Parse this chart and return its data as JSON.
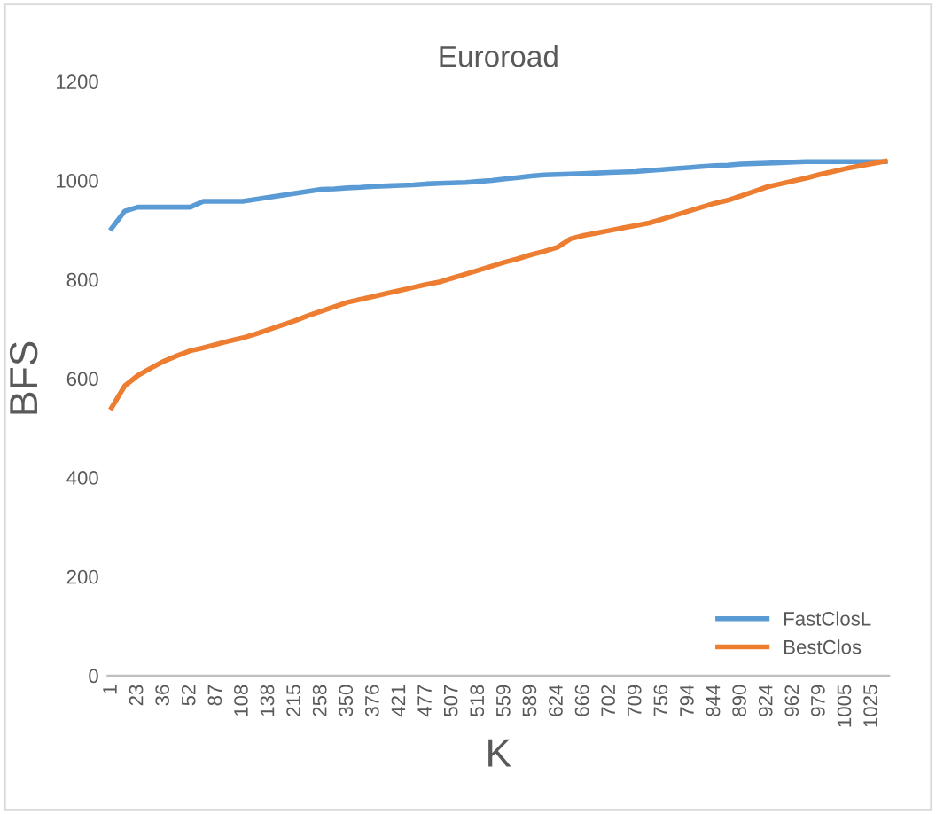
{
  "chart_data": {
    "type": "line",
    "title": "Euroroad",
    "xlabel": "K",
    "ylabel": "BFS",
    "categories": [
      "1",
      null,
      "23",
      null,
      "36",
      null,
      "52",
      null,
      "87",
      null,
      "108",
      null,
      "138",
      null,
      "215",
      null,
      "258",
      null,
      "350",
      null,
      "376",
      null,
      "421",
      null,
      "477",
      null,
      "507",
      null,
      "518",
      null,
      "559",
      null,
      "589",
      null,
      "624",
      null,
      "666",
      null,
      "702",
      null,
      "709",
      null,
      "756",
      null,
      "794",
      null,
      "844",
      null,
      "890",
      null,
      "924",
      null,
      "962",
      null,
      "979",
      null,
      "1005",
      null,
      "1025",
      null
    ],
    "series": [
      {
        "name": "FastClosL",
        "color": "#5b9bd5",
        "values": [
          903,
          938,
          946,
          946,
          946,
          946,
          946,
          958,
          958,
          958,
          958,
          962,
          966,
          970,
          974,
          978,
          982,
          983,
          985,
          986,
          988,
          989,
          990,
          991,
          993,
          994,
          995,
          996,
          998,
          1000,
          1003,
          1006,
          1009,
          1011,
          1012,
          1013,
          1014,
          1015,
          1016,
          1017,
          1018,
          1020,
          1022,
          1024,
          1026,
          1028,
          1030,
          1031,
          1033,
          1034,
          1035,
          1036,
          1037,
          1038,
          1038,
          1038,
          1038,
          1038,
          1038,
          1038
        ]
      },
      {
        "name": "BestClos",
        "color": "#ed7d31",
        "values": [
          541,
          585,
          606,
          621,
          635,
          646,
          656,
          662,
          669,
          676,
          682,
          690,
          699,
          708,
          717,
          727,
          736,
          745,
          754,
          760,
          766,
          772,
          778,
          784,
          790,
          795,
          803,
          811,
          819,
          827,
          835,
          842,
          850,
          857,
          865,
          882,
          889,
          894,
          899,
          904,
          909,
          914,
          922,
          930,
          938,
          946,
          954,
          960,
          969,
          978,
          987,
          993,
          999,
          1005,
          1012,
          1018,
          1024,
          1029,
          1034,
          1039
        ]
      }
    ],
    "ylim": [
      0,
      1200
    ],
    "yticks": [
      0,
      200,
      400,
      600,
      800,
      1000,
      1200
    ],
    "grid": false,
    "legend": "bottom right",
    "marker": "none",
    "line_style": "solid"
  }
}
